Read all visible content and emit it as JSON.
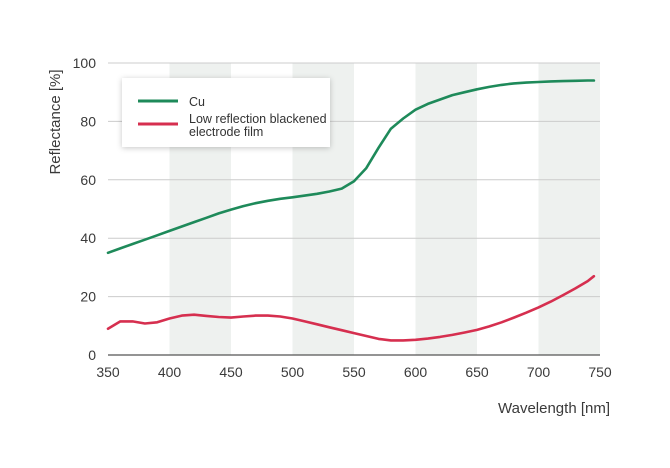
{
  "chart_data": {
    "type": "line",
    "xlabel": "Wavelength [nm]",
    "ylabel": "Reflectance [%]",
    "xlim": [
      350,
      750
    ],
    "ylim": [
      0,
      100
    ],
    "xticks": [
      "350",
      "400",
      "450",
      "500",
      "550",
      "600",
      "650",
      "700",
      "750"
    ],
    "yticks": [
      "0",
      "20",
      "40",
      "60",
      "80",
      "100"
    ],
    "shaded_bands": [
      [
        400,
        450
      ],
      [
        500,
        550
      ],
      [
        600,
        650
      ],
      [
        700,
        750
      ]
    ],
    "band_color": "#eef1ef",
    "legend_position": "top-left",
    "series": [
      {
        "name": "Cu",
        "color": "#1e8a5a",
        "x": [
          350,
          360,
          370,
          380,
          390,
          400,
          410,
          420,
          430,
          440,
          450,
          460,
          470,
          480,
          490,
          500,
          510,
          520,
          530,
          540,
          550,
          560,
          570,
          580,
          590,
          600,
          610,
          620,
          630,
          640,
          650,
          660,
          670,
          680,
          690,
          700,
          710,
          720,
          730,
          740,
          745
        ],
        "y": [
          35,
          36.5,
          38,
          39.5,
          41,
          42.5,
          44,
          45.5,
          47,
          48.5,
          49.8,
          51,
          52,
          52.8,
          53.5,
          54,
          54.6,
          55.2,
          56,
          57,
          59.5,
          64,
          71,
          77.5,
          81,
          84,
          86,
          87.5,
          89,
          90,
          91,
          91.8,
          92.5,
          93,
          93.3,
          93.5,
          93.7,
          93.8,
          93.9,
          94,
          94
        ]
      },
      {
        "name": "Low reflection blackened\nelectrode film",
        "color": "#d62f4f",
        "x": [
          350,
          360,
          370,
          380,
          390,
          400,
          410,
          420,
          430,
          440,
          450,
          460,
          470,
          480,
          490,
          500,
          510,
          520,
          530,
          540,
          550,
          560,
          570,
          580,
          590,
          600,
          610,
          620,
          630,
          640,
          650,
          660,
          670,
          680,
          690,
          700,
          710,
          720,
          730,
          740,
          745
        ],
        "y": [
          9,
          11.5,
          11.5,
          10.8,
          11.2,
          12.5,
          13.5,
          13.8,
          13.4,
          13,
          12.8,
          13.2,
          13.5,
          13.5,
          13.2,
          12.5,
          11.5,
          10.5,
          9.5,
          8.5,
          7.5,
          6.5,
          5.5,
          5,
          5,
          5.2,
          5.6,
          6.2,
          6.9,
          7.7,
          8.6,
          9.8,
          11.2,
          12.8,
          14.5,
          16.3,
          18.3,
          20.5,
          22.8,
          25.3,
          27
        ]
      }
    ]
  }
}
